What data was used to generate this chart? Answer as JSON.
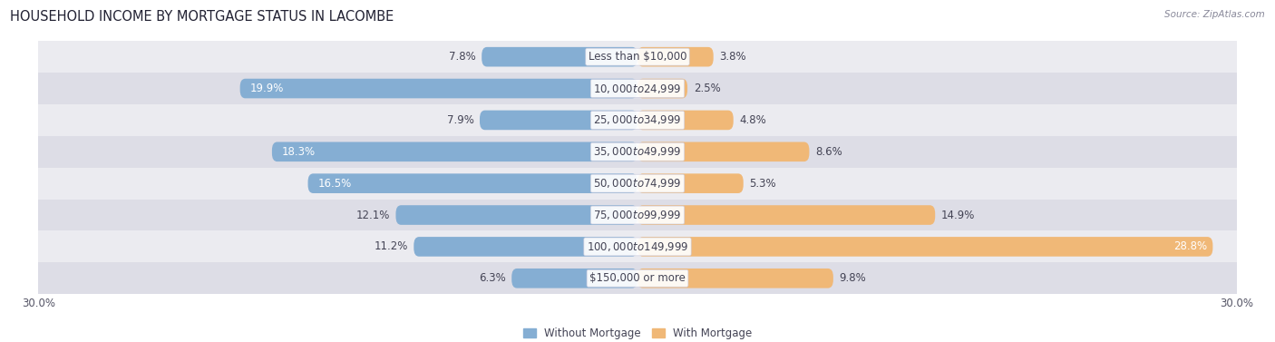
{
  "title": "HOUSEHOLD INCOME BY MORTGAGE STATUS IN LACOMBE",
  "source": "Source: ZipAtlas.com",
  "categories": [
    "Less than $10,000",
    "$10,000 to $24,999",
    "$25,000 to $34,999",
    "$35,000 to $49,999",
    "$50,000 to $74,999",
    "$75,000 to $99,999",
    "$100,000 to $149,999",
    "$150,000 or more"
  ],
  "without_mortgage": [
    7.8,
    19.9,
    7.9,
    18.3,
    16.5,
    12.1,
    11.2,
    6.3
  ],
  "with_mortgage": [
    3.8,
    2.5,
    4.8,
    8.6,
    5.3,
    14.9,
    28.8,
    9.8
  ],
  "color_without": "#85aed3",
  "color_with": "#f0b877",
  "color_bg_light": "#ebebf0",
  "color_bg_dark": "#dddde6",
  "xlim": 30.0,
  "legend_without": "Without Mortgage",
  "legend_with": "With Mortgage",
  "title_fontsize": 10.5,
  "label_fontsize": 8.5,
  "axis_label_fontsize": 8.5,
  "inside_label_threshold_without": 13,
  "inside_label_threshold_with": 22
}
